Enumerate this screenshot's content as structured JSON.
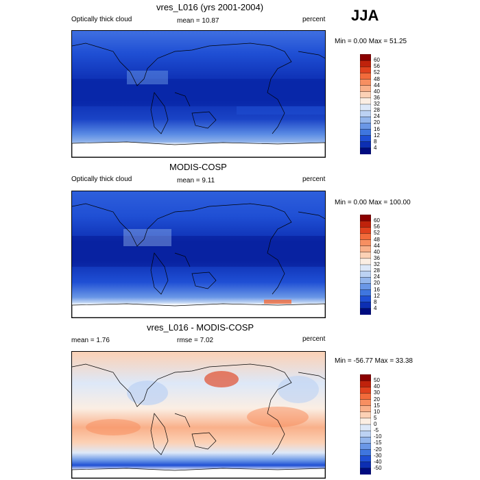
{
  "season": "JJA",
  "panels": [
    {
      "title": "vres_L016 (yrs 2001-2004)",
      "left_label": "Optically thick cloud",
      "center_label": "mean =  10.87",
      "right_label": "percent",
      "minmax": "Min =   0.00 Max =  51.25"
    },
    {
      "title": "MODIS-COSP",
      "left_label": "Optically thick cloud",
      "center_label": "mean =   9.11",
      "right_label": "percent",
      "minmax": "Min =   0.00 Max = 100.00"
    },
    {
      "title": "vres_L016 - MODIS-COSP",
      "left_label": "mean =   1.76",
      "center_label": "rmse =   7.02",
      "right_label": "percent",
      "minmax": "Min = -56.77 Max =  33.38"
    }
  ],
  "colorbars": [
    {
      "labels": [
        "60",
        "56",
        "52",
        "48",
        "44",
        "40",
        "36",
        "32",
        "28",
        "24",
        "20",
        "16",
        "12",
        "8",
        "4"
      ],
      "colors": [
        "#8b0000",
        "#c0220b",
        "#e0421e",
        "#f26b3b",
        "#f78f61",
        "#f9b08a",
        "#fcd1b5",
        "#fbeee3",
        "#dde8f8",
        "#bcd2f3",
        "#94b6ec",
        "#6a97e6",
        "#3f76df",
        "#1f4fd4",
        "#0d2fb3",
        "#000c80"
      ]
    },
    {
      "labels": [
        "60",
        "56",
        "52",
        "48",
        "44",
        "40",
        "36",
        "32",
        "28",
        "24",
        "20",
        "16",
        "12",
        "8",
        "4"
      ],
      "colors": [
        "#8b0000",
        "#c0220b",
        "#e0421e",
        "#f26b3b",
        "#f78f61",
        "#f9b08a",
        "#fcd1b5",
        "#fbeee3",
        "#dde8f8",
        "#bcd2f3",
        "#94b6ec",
        "#6a97e6",
        "#3f76df",
        "#1f4fd4",
        "#0d2fb3",
        "#000c80"
      ]
    },
    {
      "labels": [
        "50",
        "40",
        "30",
        "20",
        "15",
        "10",
        "5",
        "0",
        "-5",
        "-10",
        "-15",
        "-20",
        "-30",
        "-40",
        "-50"
      ],
      "colors": [
        "#8b0000",
        "#c0220b",
        "#e0421e",
        "#f26b3b",
        "#f78f61",
        "#f9b08a",
        "#fcd1b5",
        "#fbeee3",
        "#dde8f8",
        "#bcd2f3",
        "#94b6ec",
        "#6a97e6",
        "#3f76df",
        "#1f4fd4",
        "#0d2fb3",
        "#000c80"
      ]
    }
  ],
  "chart_data": [
    {
      "type": "heatmap",
      "title": "vres_L016 (yrs 2001-2004)",
      "variable": "Optically thick cloud",
      "units": "percent",
      "mean": 10.87,
      "min": 0.0,
      "max": 51.25,
      "levels": [
        4,
        8,
        12,
        16,
        20,
        24,
        28,
        32,
        36,
        40,
        44,
        48,
        52,
        56,
        60
      ]
    },
    {
      "type": "heatmap",
      "title": "MODIS-COSP",
      "variable": "Optically thick cloud",
      "units": "percent",
      "mean": 9.11,
      "min": 0.0,
      "max": 100.0,
      "levels": [
        4,
        8,
        12,
        16,
        20,
        24,
        28,
        32,
        36,
        40,
        44,
        48,
        52,
        56,
        60
      ]
    },
    {
      "type": "heatmap",
      "title": "vres_L016 - MODIS-COSP",
      "units": "percent",
      "mean": 1.76,
      "rmse": 7.02,
      "min": -56.77,
      "max": 33.38,
      "levels": [
        -50,
        -40,
        -30,
        -20,
        -15,
        -10,
        -5,
        0,
        5,
        10,
        15,
        20,
        30,
        40,
        50
      ]
    }
  ]
}
